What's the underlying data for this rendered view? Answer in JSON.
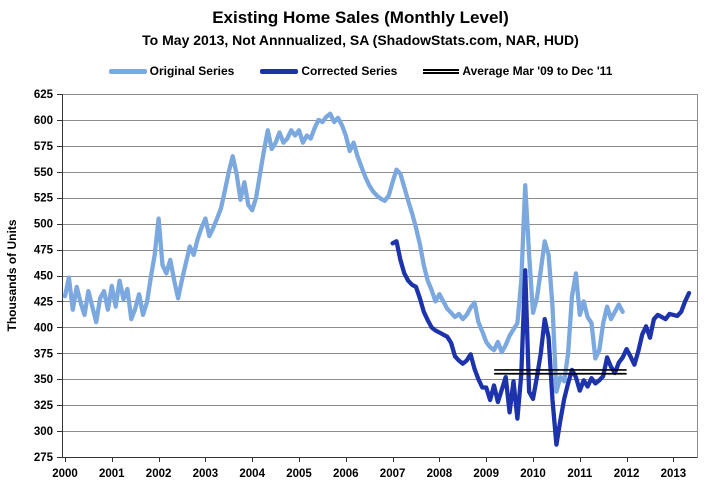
{
  "header": {
    "title": "Existing Home Sales (Monthly Level)",
    "subtitle": "To May 2013, Not Annnualized, SA (ShadowStats.com, NAR, HUD)"
  },
  "legend": {
    "items": [
      {
        "label": "Original Series",
        "swatch": "line",
        "color": "#7CA8E0"
      },
      {
        "label": "Corrected Series",
        "swatch": "line",
        "color": "#1C33AC"
      },
      {
        "label": "Average Mar '09 to Dec '11",
        "swatch": "double-line",
        "color": "#000000"
      }
    ]
  },
  "y_axis": {
    "title": "Thousands of Units",
    "ticks": [
      "275",
      "300",
      "325",
      "350",
      "375",
      "400",
      "425",
      "450",
      "475",
      "500",
      "525",
      "550",
      "575",
      "600",
      "625"
    ]
  },
  "x_axis": {
    "ticks": [
      "2000",
      "2001",
      "2002",
      "2003",
      "2004",
      "2005",
      "2006",
      "2007",
      "2008",
      "2009",
      "2010",
      "2011",
      "2012",
      "2013"
    ]
  },
  "chart_data": {
    "type": "line",
    "title": "Existing Home Sales (Monthly Level)",
    "subtitle": "To May 2013, Not Annnualized, SA (ShadowStats.com, NAR, HUD)",
    "xlabel": "",
    "ylabel": "Thousands of Units",
    "ylim": [
      275,
      625
    ],
    "y_tick_step": 25,
    "xlim": [
      2000,
      2013.58
    ],
    "grid": "horizontal",
    "legend_position": "top",
    "series": [
      {
        "name": "Original Series",
        "color": "#7CA8E0",
        "frequency": "monthly",
        "start_year": 2000,
        "values": [
          430,
          448,
          417,
          439,
          424,
          412,
          435,
          420,
          405,
          428,
          435,
          417,
          440,
          420,
          445,
          427,
          437,
          408,
          418,
          432,
          412,
          424,
          448,
          470,
          505,
          460,
          452,
          465,
          445,
          428,
          446,
          462,
          478,
          470,
          485,
          496,
          505,
          488,
          496,
          505,
          515,
          532,
          550,
          565,
          548,
          523,
          540,
          518,
          513,
          525,
          548,
          570,
          590,
          572,
          578,
          588,
          578,
          582,
          590,
          585,
          590,
          578,
          585,
          582,
          592,
          600,
          598,
          603,
          606,
          598,
          602,
          595,
          585,
          570,
          578,
          565,
          555,
          545,
          537,
          531,
          527,
          524,
          522,
          527,
          540,
          552,
          548,
          535,
          522,
          510,
          496,
          480,
          460,
          445,
          436,
          425,
          432,
          425,
          418,
          414,
          410,
          413,
          408,
          412,
          419,
          424,
          405,
          396,
          386,
          381,
          378,
          386,
          376,
          383,
          392,
          398,
          404,
          445,
          537,
          470,
          414,
          428,
          455,
          483,
          470,
          420,
          338,
          352,
          348,
          375,
          430,
          452,
          412,
          425,
          410,
          404,
          370,
          378,
          404,
          420,
          408,
          415,
          422,
          415
        ]
      },
      {
        "name": "Corrected Series",
        "color": "#1C33AC",
        "frequency": "monthly",
        "start_year": 2007,
        "values": [
          481,
          483,
          465,
          452,
          445,
          441,
          439,
          428,
          415,
          407,
          400,
          397,
          395,
          393,
          391,
          385,
          372,
          368,
          365,
          368,
          374,
          360,
          350,
          342,
          342,
          330,
          344,
          328,
          340,
          352,
          318,
          348,
          312,
          355,
          455,
          338,
          331,
          352,
          375,
          408,
          390,
          330,
          287,
          310,
          331,
          346,
          359,
          352,
          339,
          349,
          343,
          351,
          346,
          349,
          353,
          371,
          362,
          356,
          366,
          371,
          379,
          372,
          364,
          377,
          393,
          401,
          390,
          408,
          412,
          410,
          408,
          413,
          412,
          411,
          415,
          425,
          433
        ]
      }
    ],
    "average_line": {
      "label": "Average Mar '09 to Dec '11",
      "value": 357,
      "x_start": 2009.17,
      "x_end": 2012.0,
      "color": "#000000"
    }
  }
}
